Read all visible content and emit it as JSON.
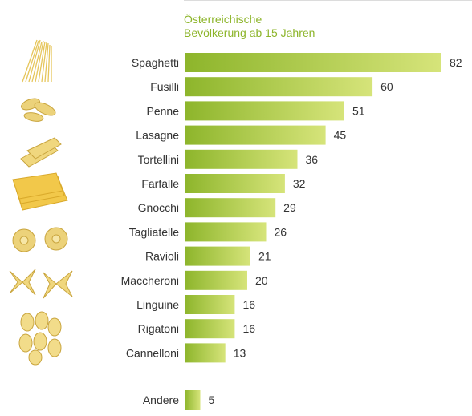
{
  "chart_data": {
    "type": "bar",
    "orientation": "horizontal",
    "subtitle_line1": "Österreichische",
    "subtitle_line2": "Bevölkerung ab 15 Jahren",
    "categories": [
      "Spaghetti",
      "Fusilli",
      "Penne",
      "Lasagne",
      "Tortellini",
      "Farfalle",
      "Gnocchi",
      "Tagliatelle",
      "Ravioli",
      "Maccheroni",
      "Linguine",
      "Rigatoni",
      "Cannelloni",
      "Andere"
    ],
    "values": [
      82,
      60,
      51,
      45,
      36,
      32,
      29,
      26,
      21,
      20,
      16,
      16,
      13,
      5
    ],
    "xlim": [
      0,
      82
    ],
    "grid": false,
    "colors": {
      "bar_light": "#d6e47a",
      "bar_dark": "#8db52b",
      "text": "#333333",
      "subtitle": "#8db52b"
    }
  }
}
